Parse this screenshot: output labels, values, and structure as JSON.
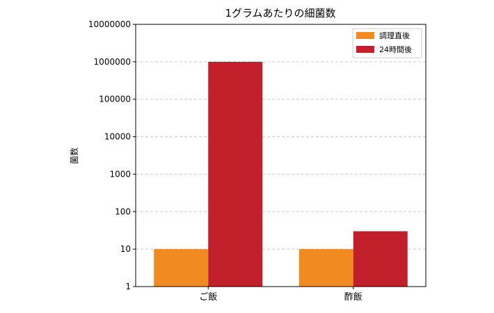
{
  "chart_data": {
    "type": "bar",
    "title": "1グラムあたりの細菌数",
    "xlabel": "",
    "ylabel": "菌数",
    "categories": [
      "ご飯",
      "酢飯"
    ],
    "series": [
      {
        "name": "調理直後",
        "values": [
          10,
          10
        ],
        "color": "#f28a22"
      },
      {
        "name": "24時間後",
        "values": [
          1000000,
          30
        ],
        "color": "#c11f2a"
      }
    ],
    "yscale": "log",
    "ylim": [
      1,
      10000000
    ],
    "yticks": [
      1,
      10,
      100,
      1000,
      10000,
      100000,
      1000000,
      10000000
    ],
    "ytick_labels": [
      "1",
      "10",
      "100",
      "1000",
      "10000",
      "100000",
      "1000000",
      "10000000"
    ],
    "grid": true,
    "legend_position": "top-right"
  }
}
